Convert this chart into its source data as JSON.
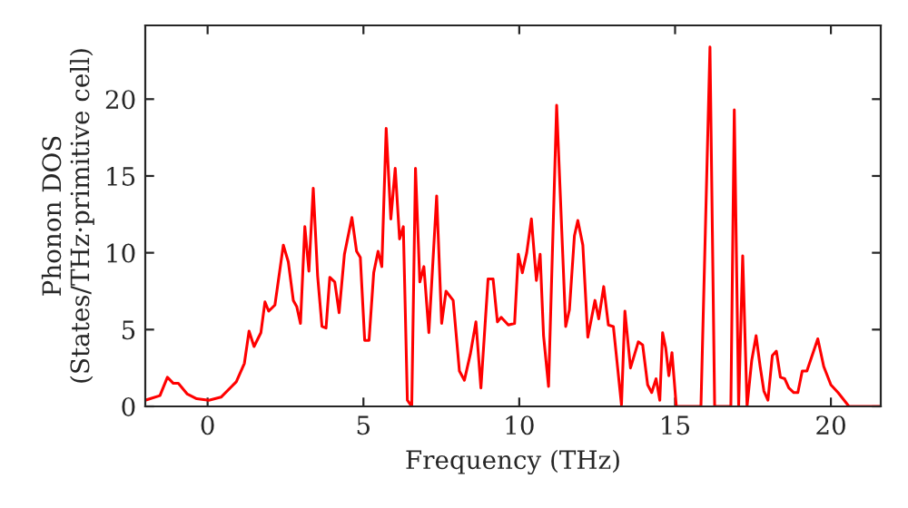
{
  "chart_data": {
    "type": "line",
    "xlabel": "Frequency (THz)",
    "ylabel": "Phonon DOS\n(States/THz·primitive cell)",
    "xlim": [
      -2,
      21.6
    ],
    "ylim": [
      0,
      24.8
    ],
    "xticks": [
      0,
      5,
      10,
      15,
      20
    ],
    "yticks": [
      0,
      5,
      10,
      15,
      20
    ],
    "grid": false,
    "marker": "none",
    "line_style": "solid",
    "series": [
      {
        "color": "#ff0000",
        "x": [
          -2.0,
          -1.53,
          -1.29,
          -1.1,
          -0.94,
          -0.65,
          -0.35,
          0.04,
          0.43,
          0.92,
          1.18,
          1.33,
          1.49,
          1.71,
          1.84,
          1.96,
          2.16,
          2.43,
          2.59,
          2.75,
          2.86,
          2.98,
          3.12,
          3.25,
          3.39,
          3.53,
          3.67,
          3.8,
          3.92,
          4.08,
          4.22,
          4.39,
          4.63,
          4.78,
          4.9,
          5.04,
          5.18,
          5.33,
          5.47,
          5.59,
          5.73,
          5.88,
          6.02,
          6.16,
          6.28,
          6.41,
          6.55,
          6.67,
          6.81,
          6.94,
          7.1,
          7.35,
          7.51,
          7.65,
          7.88,
          8.08,
          8.24,
          8.43,
          8.61,
          8.77,
          9.0,
          9.16,
          9.3,
          9.42,
          9.65,
          9.85,
          9.97,
          10.1,
          10.24,
          10.39,
          10.55,
          10.67,
          10.78,
          10.94,
          11.2,
          11.49,
          11.61,
          11.77,
          11.88,
          12.04,
          12.2,
          12.43,
          12.55,
          12.71,
          12.86,
          13.02,
          13.28,
          13.39,
          13.57,
          13.82,
          13.96,
          14.12,
          14.25,
          14.39,
          14.51,
          14.6,
          14.7,
          14.8,
          14.9,
          15.04,
          15.83,
          16.12,
          16.27,
          16.79,
          16.9,
          17.04,
          17.17,
          17.31,
          17.46,
          17.6,
          17.73,
          17.85,
          17.98,
          18.12,
          18.25,
          18.38,
          18.52,
          18.65,
          18.81,
          18.94,
          19.08,
          19.23,
          19.38,
          19.58,
          19.77,
          20.0,
          20.23,
          20.58,
          21.6
        ],
        "values": [
          0.4,
          0.7,
          1.9,
          1.5,
          1.5,
          0.8,
          0.5,
          0.4,
          0.6,
          1.6,
          2.8,
          4.9,
          3.9,
          4.8,
          6.8,
          6.2,
          6.6,
          10.5,
          9.4,
          6.9,
          6.5,
          5.4,
          11.7,
          8.8,
          14.2,
          8.5,
          5.2,
          5.1,
          8.4,
          8.1,
          6.1,
          9.9,
          12.3,
          10.1,
          9.7,
          4.3,
          4.3,
          8.7,
          10.1,
          9.1,
          18.1,
          12.2,
          15.5,
          10.9,
          11.7,
          0.4,
          0.0,
          15.5,
          8.1,
          9.1,
          4.8,
          13.7,
          5.4,
          7.5,
          6.9,
          2.3,
          1.7,
          3.4,
          5.5,
          1.2,
          8.3,
          8.3,
          5.5,
          5.8,
          5.3,
          5.4,
          9.9,
          8.7,
          10.0,
          12.2,
          8.2,
          9.9,
          4.6,
          1.3,
          19.6,
          5.2,
          6.3,
          11.1,
          12.1,
          10.5,
          4.5,
          6.9,
          5.7,
          7.8,
          5.3,
          5.2,
          0.1,
          6.2,
          2.5,
          4.2,
          4.0,
          1.4,
          0.9,
          1.8,
          0.4,
          4.8,
          3.8,
          2.0,
          3.5,
          0.0,
          0.0,
          23.4,
          0.0,
          0.0,
          19.3,
          0.0,
          9.8,
          0.0,
          3.0,
          4.6,
          2.6,
          1.0,
          0.4,
          3.3,
          3.6,
          1.9,
          1.8,
          1.2,
          0.9,
          0.9,
          2.3,
          2.3,
          3.2,
          4.4,
          2.6,
          1.4,
          0.9,
          0.0,
          0.0
        ]
      }
    ]
  }
}
